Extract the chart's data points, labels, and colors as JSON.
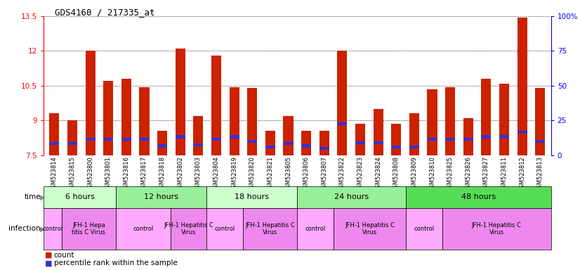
{
  "title": "GDS4160 / 217335_at",
  "samples": [
    "GSM523814",
    "GSM523815",
    "GSM523800",
    "GSM523801",
    "GSM523816",
    "GSM523817",
    "GSM523818",
    "GSM523802",
    "GSM523803",
    "GSM523804",
    "GSM523819",
    "GSM523820",
    "GSM523821",
    "GSM523805",
    "GSM523806",
    "GSM523807",
    "GSM523822",
    "GSM523823",
    "GSM523824",
    "GSM523808",
    "GSM523809",
    "GSM523810",
    "GSM523825",
    "GSM523826",
    "GSM523827",
    "GSM523811",
    "GSM523812",
    "GSM523813"
  ],
  "count_values": [
    9.3,
    9.0,
    12.0,
    10.7,
    10.8,
    10.45,
    8.55,
    12.1,
    9.2,
    11.8,
    10.45,
    10.4,
    8.55,
    9.2,
    8.55,
    8.55,
    12.0,
    8.85,
    9.5,
    8.85,
    9.3,
    10.35,
    10.45,
    9.1,
    10.8,
    10.6,
    13.45,
    10.4
  ],
  "percentile_values": [
    8.0,
    8.0,
    8.2,
    8.2,
    8.2,
    8.2,
    7.9,
    8.3,
    7.95,
    8.2,
    8.3,
    8.1,
    7.85,
    8.0,
    7.9,
    7.8,
    8.85,
    8.05,
    8.05,
    7.85,
    7.85,
    8.2,
    8.2,
    8.2,
    8.3,
    8.3,
    8.5,
    8.1
  ],
  "ylim": [
    7.5,
    13.5
  ],
  "yticks_left": [
    7.5,
    9.0,
    10.5,
    12.0,
    13.5
  ],
  "ytick_labels_left": [
    "7.5",
    "9",
    "10.5",
    "12",
    "13.5"
  ],
  "yticks_right": [
    0,
    25,
    50,
    75,
    100
  ],
  "bar_color": "#cc2200",
  "percentile_color": "#3333cc",
  "bar_width": 0.55,
  "ybase": 7.5,
  "time_groups": [
    {
      "label": "6 hours",
      "start": 0,
      "end": 4,
      "color": "#ccffcc"
    },
    {
      "label": "12 hours",
      "start": 4,
      "end": 9,
      "color": "#99ee99"
    },
    {
      "label": "18 hours",
      "start": 9,
      "end": 14,
      "color": "#ccffcc"
    },
    {
      "label": "24 hours",
      "start": 14,
      "end": 20,
      "color": "#99ee99"
    },
    {
      "label": "48 hours",
      "start": 20,
      "end": 28,
      "color": "#55dd55"
    }
  ],
  "infection_groups": [
    {
      "label": "control",
      "start": 0,
      "end": 1,
      "color": "#ffaaff"
    },
    {
      "label": "JFH-1 Hepa\ntitis C Virus",
      "start": 1,
      "end": 4,
      "color": "#ee88ee"
    },
    {
      "label": "control",
      "start": 4,
      "end": 7,
      "color": "#ffaaff"
    },
    {
      "label": "JFH-1 Hepatitis C\nVirus",
      "start": 7,
      "end": 9,
      "color": "#ee88ee"
    },
    {
      "label": "control",
      "start": 9,
      "end": 11,
      "color": "#ffaaff"
    },
    {
      "label": "JFH-1 Hepatitis C\nVirus",
      "start": 11,
      "end": 14,
      "color": "#ee88ee"
    },
    {
      "label": "control",
      "start": 14,
      "end": 16,
      "color": "#ffaaff"
    },
    {
      "label": "JFH-1 Hepatitis C\nVirus",
      "start": 16,
      "end": 20,
      "color": "#ee88ee"
    },
    {
      "label": "control",
      "start": 20,
      "end": 22,
      "color": "#ffaaff"
    },
    {
      "label": "JFH-1 Hepatitis C\nVirus",
      "start": 22,
      "end": 28,
      "color": "#ee88ee"
    }
  ],
  "legend_count_color": "#cc2200",
  "legend_percentile_color": "#3333cc",
  "background_color": "#ffffff"
}
